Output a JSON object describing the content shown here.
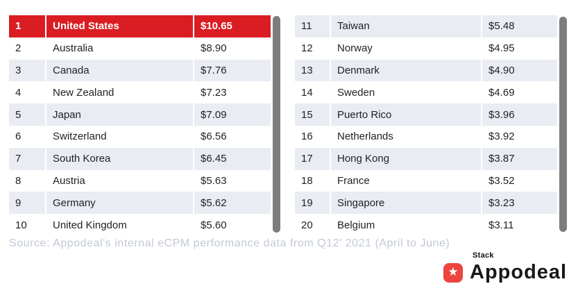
{
  "left_table": {
    "rows": [
      {
        "rank": "1",
        "country": "United States",
        "value": "$10.65"
      },
      {
        "rank": "2",
        "country": "Australia",
        "value": "$8.90"
      },
      {
        "rank": "3",
        "country": "Canada",
        "value": "$7.76"
      },
      {
        "rank": "4",
        "country": "New Zealand",
        "value": "$7.23"
      },
      {
        "rank": "5",
        "country": "Japan",
        "value": "$7.09"
      },
      {
        "rank": "6",
        "country": "Switzerland",
        "value": "$6.56"
      },
      {
        "rank": "7",
        "country": "South Korea",
        "value": "$6.45"
      },
      {
        "rank": "8",
        "country": "Austria",
        "value": "$5.63"
      },
      {
        "rank": "9",
        "country": "Germany",
        "value": "$5.62"
      },
      {
        "rank": "10",
        "country": "United Kingdom",
        "value": "$5.60"
      }
    ]
  },
  "right_table": {
    "rows": [
      {
        "rank": "11",
        "country": "Taiwan",
        "value": "$5.48"
      },
      {
        "rank": "12",
        "country": "Norway",
        "value": "$4.95"
      },
      {
        "rank": "13",
        "country": "Denmark",
        "value": "$4.90"
      },
      {
        "rank": "14",
        "country": "Sweden",
        "value": "$4.69"
      },
      {
        "rank": "15",
        "country": "Puerto Rico",
        "value": "$3.96"
      },
      {
        "rank": "16",
        "country": "Netherlands",
        "value": "$3.92"
      },
      {
        "rank": "17",
        "country": "Hong Kong",
        "value": "$3.87"
      },
      {
        "rank": "18",
        "country": "France",
        "value": "$3.52"
      },
      {
        "rank": "19",
        "country": "Singapore",
        "value": "$3.23"
      },
      {
        "rank": "20",
        "country": "Belgium",
        "value": "$3.11"
      }
    ]
  },
  "source": {
    "text": "Source: Appodeal's internal eCPM performance data from Q12' 2021 (April to June)"
  },
  "logo": {
    "stack": "Stack",
    "name": "Appodeal",
    "star_glyph": "★"
  },
  "colors": {
    "highlight_red": "#d91d23",
    "logo_red": "#ec4540",
    "row_stripe": "#e9ecf3",
    "scrollbar_gray": "#7d7d7f",
    "source_text": "#c2c8d4",
    "table_text": "#1f2023"
  },
  "chart_data": {
    "type": "table",
    "columns": [
      "rank",
      "country",
      "ecpm_usd"
    ],
    "rows": [
      [
        1,
        "United States",
        10.65
      ],
      [
        2,
        "Australia",
        8.9
      ],
      [
        3,
        "Canada",
        7.76
      ],
      [
        4,
        "New Zealand",
        7.23
      ],
      [
        5,
        "Japan",
        7.09
      ],
      [
        6,
        "Switzerland",
        6.56
      ],
      [
        7,
        "South Korea",
        6.45
      ],
      [
        8,
        "Austria",
        5.63
      ],
      [
        9,
        "Germany",
        5.62
      ],
      [
        10,
        "United Kingdom",
        5.6
      ],
      [
        11,
        "Taiwan",
        5.48
      ],
      [
        12,
        "Norway",
        4.95
      ],
      [
        13,
        "Denmark",
        4.9
      ],
      [
        14,
        "Sweden",
        4.69
      ],
      [
        15,
        "Puerto Rico",
        3.96
      ],
      [
        16,
        "Netherlands",
        3.92
      ],
      [
        17,
        "Hong Kong",
        3.87
      ],
      [
        18,
        "France",
        3.52
      ],
      [
        19,
        "Singapore",
        3.23
      ],
      [
        20,
        "Belgium",
        3.11
      ]
    ],
    "highlighted_row": 1,
    "currency": "USD",
    "source": "Source: Appodeal's internal eCPM performance data from Q12' 2021 (April to June)"
  }
}
